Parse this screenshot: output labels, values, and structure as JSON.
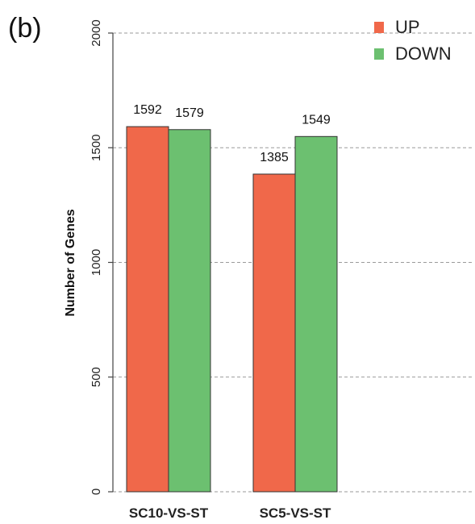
{
  "panel_label": "(b)",
  "chart_data": {
    "type": "bar",
    "title": "",
    "xlabel": "",
    "ylabel": "Number of Genes",
    "categories": [
      "SC10-VS-ST",
      "SC5-VS-ST"
    ],
    "series": [
      {
        "name": "UP",
        "values": [
          1592,
          1385
        ],
        "color": "#f0684a"
      },
      {
        "name": "DOWN",
        "values": [
          1579,
          1549
        ],
        "color": "#6cc070"
      }
    ],
    "ylim": [
      0,
      2000
    ],
    "yticks": [
      0,
      500,
      1000,
      1500,
      2000
    ],
    "ytick_labels": [
      "0",
      "500",
      "1000",
      "1500",
      "2000"
    ],
    "grid": "horizontal-dashed",
    "legend_position": "top-right",
    "data_labels": true
  }
}
